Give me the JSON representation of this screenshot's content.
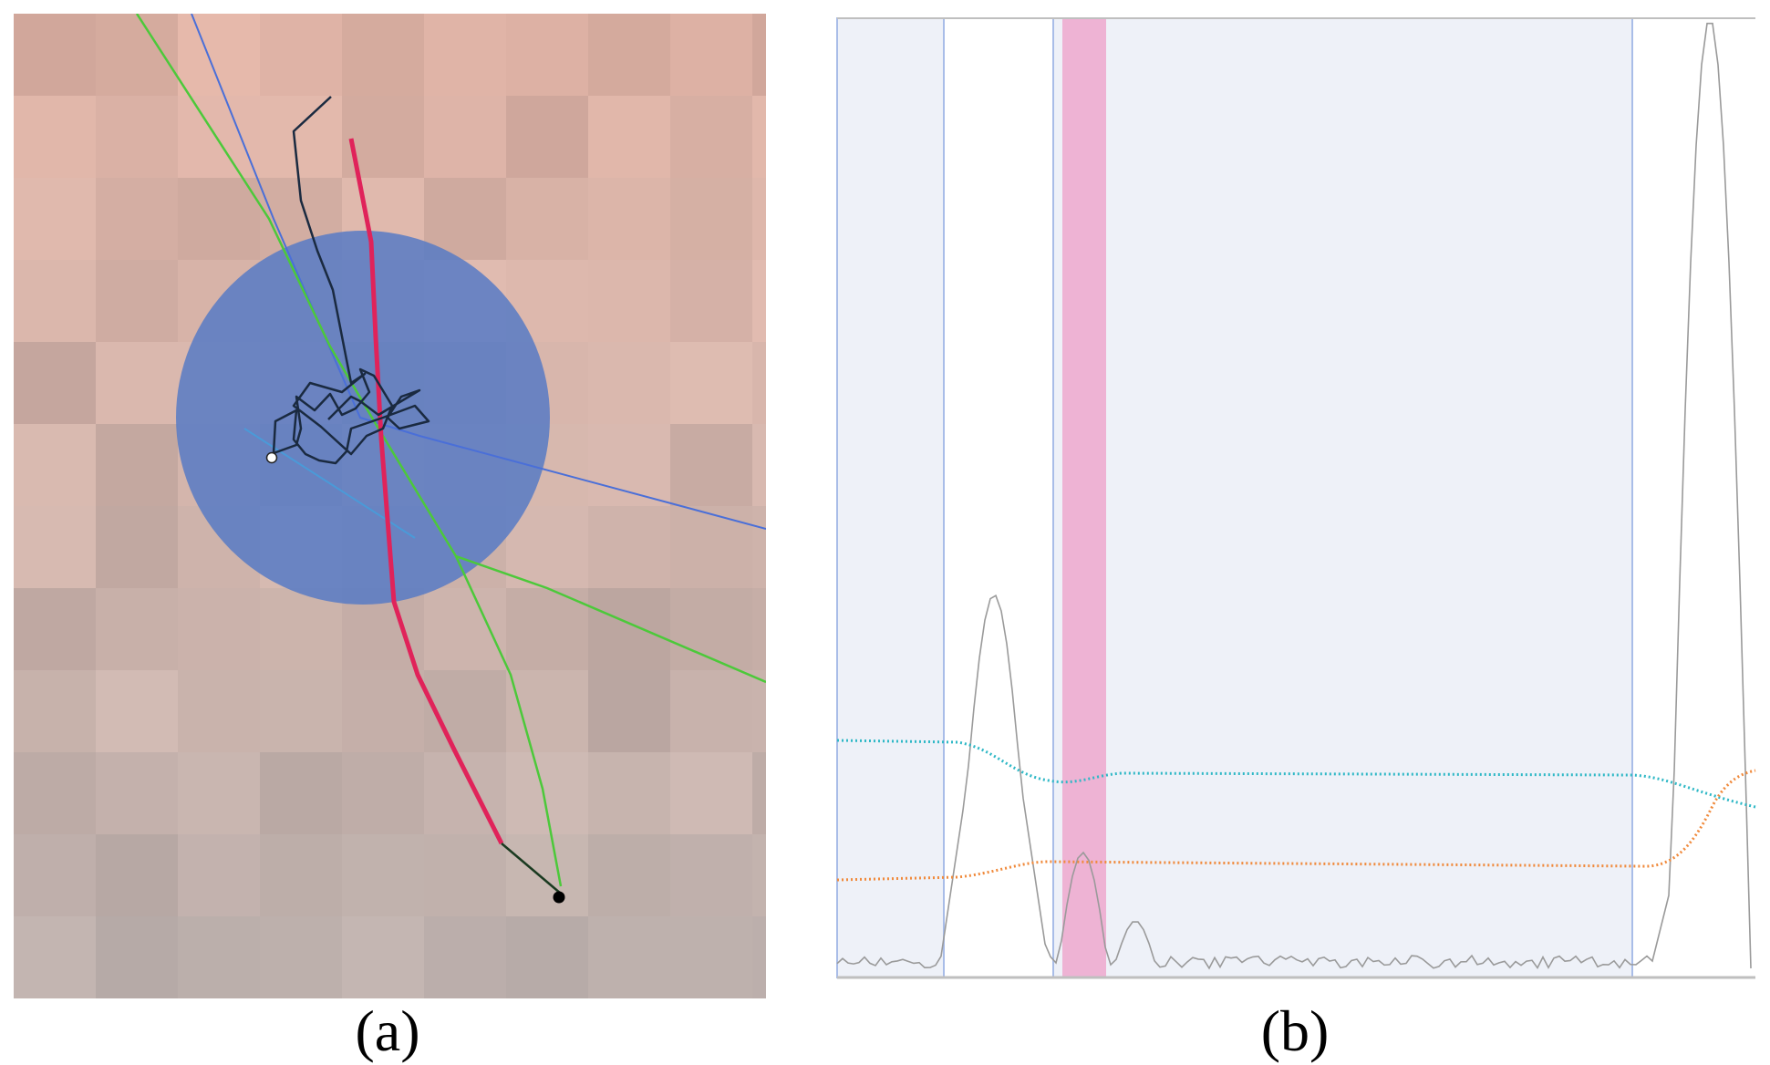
{
  "panels": {
    "a": {
      "label": "(a)"
    },
    "b": {
      "label": "(b)"
    }
  },
  "colors": {
    "circle": "#5b7cc4",
    "red_track": "#e0235a",
    "green_track": "#4cc93a",
    "dark_track": "#1a2a40",
    "blue_line": "#4a6fd8",
    "band_fill": "#eef1f8",
    "band_edge": "#a9bde8",
    "pink_band": "#ee9ec8",
    "cyan_series": "#2fb8c6",
    "orange_series": "#f08a3c",
    "gray_series": "#9a9a9a"
  }
}
